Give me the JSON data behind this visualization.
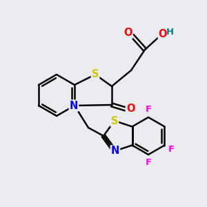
{
  "background_color": "#eeeef0",
  "atom_colors": {
    "C": "#000000",
    "S": "#cccc00",
    "N": "#0000ff",
    "O": "#ff0000",
    "F": "#ff00ff",
    "H": "#008080"
  },
  "bond_color": "#000000",
  "bond_width": 1.8,
  "font_size": 10.5,
  "fig_bg": "#eaecf0"
}
